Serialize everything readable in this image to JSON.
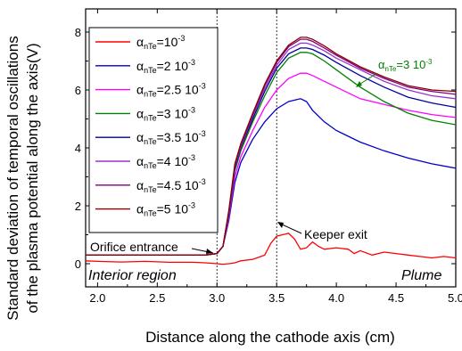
{
  "chart_data": {
    "type": "line",
    "xlabel": "Distance along the cathode axis (cm)",
    "ylabel_line1": "Standard deviation of temporal oscillations",
    "ylabel_line2": "of the plasma potential along the axis(V)",
    "xlim": [
      1.9,
      5.0
    ],
    "ylim": [
      -0.8,
      8.8
    ],
    "xticks": [
      2.0,
      2.5,
      3.0,
      3.5,
      4.0,
      4.5,
      5.0
    ],
    "xtick_labels": [
      "2.0",
      "2.5",
      "3.0",
      "3.5",
      "4.0",
      "4.5",
      "5.0"
    ],
    "yticks": [
      0,
      2,
      4,
      6,
      8
    ],
    "ytick_labels": [
      "0",
      "2",
      "4",
      "6",
      "8"
    ],
    "vlines": [
      3.0,
      3.5
    ],
    "legend_placement": "top-left",
    "legend_symbol": "α",
    "legend_sub": "nTe",
    "series": [
      {
        "name_value": "=10",
        "name_sup": "-3",
        "color": "#ff0000",
        "x": [
          1.9,
          2.0,
          2.2,
          2.4,
          2.6,
          2.8,
          2.9,
          3.0,
          3.05,
          3.1,
          3.15,
          3.2,
          3.3,
          3.4,
          3.45,
          3.5,
          3.55,
          3.6,
          3.65,
          3.7,
          3.75,
          3.8,
          3.85,
          3.9,
          4.0,
          4.1,
          4.15,
          4.2,
          4.3,
          4.4,
          4.5,
          4.6,
          4.7,
          4.8,
          4.9,
          5.0
        ],
        "y": [
          0.1,
          0.08,
          0.06,
          0.08,
          0.05,
          0.05,
          0.03,
          0.0,
          -0.02,
          0.0,
          0.03,
          0.1,
          0.15,
          0.3,
          0.7,
          0.95,
          1.0,
          1.05,
          0.85,
          0.5,
          0.55,
          0.75,
          0.6,
          0.5,
          0.55,
          0.5,
          0.35,
          0.45,
          0.3,
          0.4,
          0.35,
          0.3,
          0.25,
          0.2,
          0.25,
          0.2
        ]
      },
      {
        "name_value": "=2 10",
        "name_sup": "-3",
        "color": "#0000cc",
        "x": [
          1.9,
          2.0,
          2.5,
          2.9,
          3.0,
          3.05,
          3.1,
          3.15,
          3.2,
          3.3,
          3.4,
          3.5,
          3.6,
          3.7,
          3.75,
          3.8,
          3.9,
          4.0,
          4.2,
          4.4,
          4.6,
          4.8,
          5.0
        ],
        "y": [
          0.3,
          0.3,
          0.3,
          0.3,
          0.35,
          0.6,
          1.5,
          2.8,
          3.5,
          4.3,
          4.9,
          5.35,
          5.6,
          5.7,
          5.6,
          5.3,
          4.9,
          4.6,
          4.2,
          3.9,
          3.65,
          3.45,
          3.3
        ]
      },
      {
        "name_value": "=2.5 10",
        "name_sup": "-3",
        "color": "#ff00ff",
        "x": [
          1.9,
          2.0,
          2.5,
          2.9,
          3.0,
          3.05,
          3.1,
          3.15,
          3.2,
          3.3,
          3.4,
          3.5,
          3.6,
          3.7,
          3.75,
          3.8,
          3.9,
          4.0,
          4.2,
          4.4,
          4.6,
          4.8,
          5.0
        ],
        "y": [
          0.3,
          0.3,
          0.3,
          0.3,
          0.35,
          0.6,
          1.6,
          3.0,
          3.7,
          4.6,
          5.4,
          6.0,
          6.4,
          6.58,
          6.58,
          6.5,
          6.3,
          6.1,
          5.7,
          5.5,
          5.3,
          5.15,
          5.05
        ]
      },
      {
        "name_value": "=3 10",
        "name_sup": "-3",
        "color": "#008000",
        "x": [
          1.9,
          2.0,
          2.5,
          2.9,
          3.0,
          3.05,
          3.1,
          3.15,
          3.2,
          3.3,
          3.4,
          3.5,
          3.6,
          3.7,
          3.75,
          3.8,
          3.9,
          4.0,
          4.2,
          4.4,
          4.6,
          4.8,
          5.0
        ],
        "y": [
          0.3,
          0.3,
          0.3,
          0.3,
          0.35,
          0.6,
          1.7,
          3.2,
          3.9,
          4.9,
          5.8,
          6.6,
          7.1,
          7.3,
          7.3,
          7.25,
          7.0,
          6.7,
          6.1,
          5.6,
          5.2,
          4.95,
          4.8
        ]
      },
      {
        "name_value": "=3.5 10",
        "name_sup": "-3",
        "color": "#000099",
        "x": [
          1.9,
          2.0,
          2.5,
          2.9,
          3.0,
          3.05,
          3.1,
          3.15,
          3.2,
          3.3,
          3.4,
          3.5,
          3.6,
          3.7,
          3.75,
          3.8,
          3.9,
          4.0,
          4.2,
          4.4,
          4.6,
          4.8,
          5.0
        ],
        "y": [
          0.3,
          0.3,
          0.3,
          0.3,
          0.35,
          0.6,
          1.75,
          3.3,
          4.0,
          5.0,
          5.95,
          6.75,
          7.25,
          7.45,
          7.45,
          7.4,
          7.2,
          6.95,
          6.5,
          6.1,
          5.75,
          5.55,
          5.4
        ]
      },
      {
        "name_value": "=4 10",
        "name_sup": "-3",
        "color": "#9933cc",
        "x": [
          1.9,
          2.0,
          2.5,
          2.9,
          3.0,
          3.05,
          3.1,
          3.15,
          3.2,
          3.3,
          3.4,
          3.5,
          3.6,
          3.7,
          3.75,
          3.8,
          3.9,
          4.0,
          4.2,
          4.4,
          4.6,
          4.8,
          5.0
        ],
        "y": [
          0.3,
          0.3,
          0.3,
          0.3,
          0.35,
          0.6,
          1.8,
          3.35,
          4.05,
          5.1,
          6.05,
          6.85,
          7.4,
          7.62,
          7.62,
          7.55,
          7.35,
          7.1,
          6.7,
          6.3,
          6.0,
          5.8,
          5.7
        ]
      },
      {
        "name_value": "=4.5 10",
        "name_sup": "-3",
        "color": "#800080",
        "x": [
          1.9,
          2.0,
          2.5,
          2.9,
          3.0,
          3.05,
          3.1,
          3.15,
          3.2,
          3.3,
          3.4,
          3.5,
          3.6,
          3.7,
          3.75,
          3.8,
          3.9,
          4.0,
          4.2,
          4.4,
          4.6,
          4.8,
          5.0
        ],
        "y": [
          0.3,
          0.3,
          0.3,
          0.3,
          0.35,
          0.6,
          1.8,
          3.4,
          4.1,
          5.15,
          6.15,
          6.95,
          7.5,
          7.75,
          7.75,
          7.68,
          7.45,
          7.2,
          6.75,
          6.4,
          6.1,
          5.95,
          5.85
        ]
      },
      {
        "name_value": "=5 10",
        "name_sup": "-3",
        "color": "#8b0000",
        "x": [
          1.9,
          2.0,
          2.5,
          2.9,
          3.0,
          3.05,
          3.1,
          3.15,
          3.2,
          3.3,
          3.4,
          3.5,
          3.6,
          3.7,
          3.75,
          3.8,
          3.9,
          4.0,
          4.2,
          4.4,
          4.6,
          4.8,
          5.0
        ],
        "y": [
          0.3,
          0.3,
          0.3,
          0.3,
          0.35,
          0.6,
          1.85,
          3.45,
          4.15,
          5.2,
          6.2,
          7.0,
          7.55,
          7.82,
          7.82,
          7.75,
          7.52,
          7.25,
          6.8,
          6.45,
          6.15,
          6.0,
          5.95
        ]
      }
    ],
    "annotations": {
      "orifice": "Orifice entrance",
      "keeper": "Keeper exit",
      "interior": "Interior region",
      "plume": "Plume",
      "inline_label_value": "=3 10",
      "inline_label_sup": "-3",
      "inline_label_color": "#008000"
    }
  }
}
